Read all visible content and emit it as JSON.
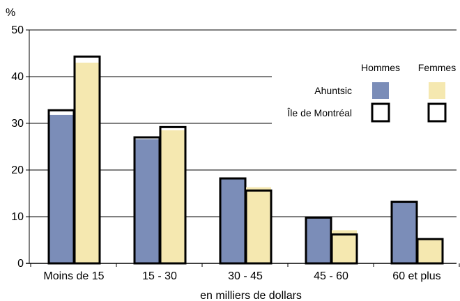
{
  "chart_data": {
    "type": "bar",
    "title": "",
    "ylabel": "%",
    "xlabel": "en milliers de dollars",
    "ylim": [
      0,
      50
    ],
    "yticks": [
      0,
      10,
      20,
      30,
      40,
      50
    ],
    "grid": true,
    "categories": [
      "Moins de 15",
      "15  - 30",
      "30  - 45",
      "45  - 60",
      "60  et plus"
    ],
    "series": [
      {
        "name": "Hommes",
        "group": "Ahuntsic",
        "color": "#7b8db8",
        "values": [
          31.8,
          26.6,
          18.0,
          9.6,
          13.0
        ]
      },
      {
        "name": "Femmes",
        "group": "Ahuntsic",
        "color": "#f5e8b0",
        "values": [
          43.0,
          28.5,
          16.3,
          7.1,
          5.2
        ]
      },
      {
        "name": "Hommes",
        "group": "Île de Montréal",
        "style": "outline",
        "values": [
          32.8,
          27.0,
          18.2,
          9.8,
          13.2
        ]
      },
      {
        "name": "Femmes",
        "group": "Île de Montréal",
        "style": "outline",
        "values": [
          44.3,
          29.2,
          15.6,
          6.2,
          5.2
        ]
      }
    ],
    "legend": {
      "position": "right",
      "column_headers": [
        "Hommes",
        "Femmes"
      ],
      "row_labels": [
        "Ahuntsic",
        "Île de Montréal"
      ]
    },
    "colors": {
      "hommes_fill": "#7b8db8",
      "femmes_fill": "#f5e8b0",
      "outline": "#000000"
    }
  }
}
